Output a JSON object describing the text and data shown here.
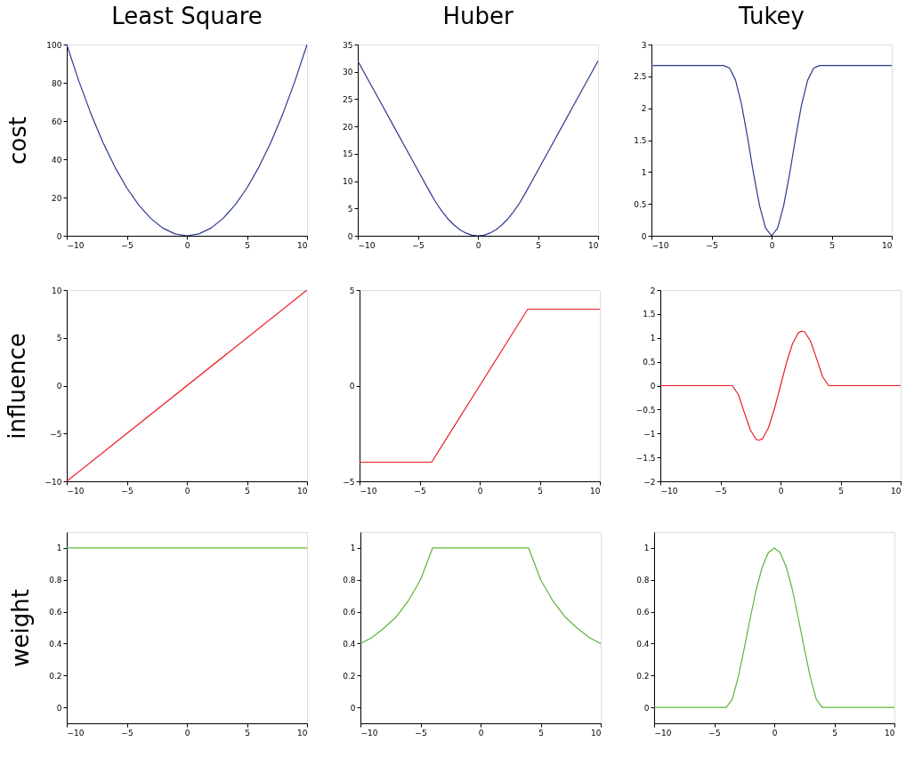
{
  "chart_data": [
    {
      "type": "line",
      "title": "Least Square",
      "ylabel": "cost",
      "x": [
        -10,
        -9,
        -8,
        -7,
        -6,
        -5,
        -4,
        -3,
        -2,
        -1,
        0,
        1,
        2,
        3,
        4,
        5,
        6,
        7,
        8,
        9,
        10
      ],
      "series": [
        {
          "color": "#2b3990",
          "values": [
            100,
            81,
            64,
            49,
            36,
            25,
            16,
            9,
            4,
            1,
            0,
            1,
            4,
            9,
            16,
            25,
            36,
            49,
            64,
            81,
            100
          ]
        }
      ],
      "xlim": [
        -10,
        10
      ],
      "xticks": [
        -10,
        -5,
        0,
        5,
        10
      ],
      "ylim": [
        0,
        100
      ],
      "yticks": [
        0,
        20,
        40,
        60,
        80,
        100
      ],
      "grid": false
    },
    {
      "type": "line",
      "title": "Huber",
      "x": [
        -10,
        -9,
        -8,
        -7,
        -6,
        -5,
        -4,
        -3.5,
        -3,
        -2.5,
        -2,
        -1.5,
        -1,
        -0.5,
        0,
        0.5,
        1,
        1.5,
        2,
        2.5,
        3,
        3.5,
        4,
        5,
        6,
        7,
        8,
        9,
        10
      ],
      "series": [
        {
          "color": "#2b3990",
          "values": [
            32,
            28,
            24,
            20,
            16,
            12,
            8,
            6.1,
            4.5,
            3.1,
            2,
            1.1,
            0.5,
            0.1,
            0,
            0.1,
            0.5,
            1.1,
            2,
            3.1,
            4.5,
            6.1,
            8,
            12,
            16,
            20,
            24,
            28,
            32
          ]
        }
      ],
      "xlim": [
        -10,
        10
      ],
      "xticks": [
        -10,
        -5,
        0,
        5,
        10
      ],
      "ylim": [
        0,
        35
      ],
      "yticks": [
        0,
        5,
        10,
        15,
        20,
        25,
        30,
        35
      ],
      "grid": false
    },
    {
      "type": "line",
      "title": "Tukey",
      "x": [
        -10,
        -4,
        -3.5,
        -3,
        -2.5,
        -2,
        -1.5,
        -1,
        -0.5,
        0,
        0.5,
        1,
        1.5,
        2,
        2.5,
        3,
        3.5,
        4,
        10
      ],
      "series": [
        {
          "color": "#2b3990",
          "values": [
            2.67,
            2.67,
            2.63,
            2.44,
            2.06,
            1.54,
            0.97,
            0.47,
            0.12,
            0,
            0.12,
            0.47,
            0.97,
            1.54,
            2.06,
            2.44,
            2.63,
            2.67,
            2.67
          ]
        }
      ],
      "xlim": [
        -10,
        10
      ],
      "xticks": [
        -10,
        -5,
        0,
        5,
        10
      ],
      "ylim": [
        0,
        3
      ],
      "yticks": [
        0,
        0.5,
        1,
        1.5,
        2,
        2.5,
        3
      ],
      "grid": false
    },
    {
      "type": "line",
      "ylabel": "influence",
      "x": [
        -10,
        10
      ],
      "series": [
        {
          "color": "#ed1c24",
          "values": [
            -10,
            10
          ]
        }
      ],
      "xlim": [
        -10,
        10
      ],
      "xticks": [
        -10,
        -5,
        0,
        5,
        10
      ],
      "ylim": [
        -10,
        10
      ],
      "yticks": [
        -10,
        -5,
        0,
        5,
        10
      ],
      "grid": false
    },
    {
      "type": "line",
      "x": [
        -10,
        -4,
        4,
        10
      ],
      "series": [
        {
          "color": "#ed1c24",
          "values": [
            -4,
            -4,
            4,
            4
          ]
        }
      ],
      "xlim": [
        -10,
        10
      ],
      "xticks": [
        -10,
        -5,
        0,
        5,
        10
      ],
      "ylim": [
        -5,
        5
      ],
      "yticks": [
        -5,
        0,
        5
      ],
      "grid": false
    },
    {
      "type": "line",
      "x": [
        -10,
        -4,
        -3.5,
        -3,
        -2.5,
        -2,
        -1.75,
        -1.5,
        -1,
        -0.5,
        0,
        0.5,
        1,
        1.5,
        1.75,
        2,
        2.5,
        3,
        3.5,
        4,
        10
      ],
      "series": [
        {
          "color": "#ed1c24",
          "values": [
            0,
            0,
            -0.19,
            -0.57,
            -0.93,
            -1.13,
            -1.14,
            -1.11,
            -0.88,
            -0.48,
            0,
            0.48,
            0.88,
            1.11,
            1.14,
            1.13,
            0.93,
            0.57,
            0.19,
            0,
            0
          ]
        }
      ],
      "xlim": [
        -10,
        10
      ],
      "xticks": [
        -10,
        -5,
        0,
        5,
        10
      ],
      "ylim": [
        -2,
        2
      ],
      "yticks": [
        -2,
        -1.5,
        -1,
        -0.5,
        0,
        0.5,
        1,
        1.5,
        2
      ],
      "grid": false
    },
    {
      "type": "line",
      "ylabel": "weight",
      "x": [
        -10,
        10
      ],
      "series": [
        {
          "color": "#5db535",
          "values": [
            1,
            1
          ]
        }
      ],
      "xlim": [
        -10,
        10
      ],
      "xticks": [
        -10,
        -5,
        0,
        5,
        10
      ],
      "ylim": [
        -0.1,
        1.1
      ],
      "yticks": [
        0,
        0.2,
        0.4,
        0.6,
        0.8,
        1
      ],
      "grid": false
    },
    {
      "type": "line",
      "x": [
        -10,
        -9,
        -8,
        -7,
        -6,
        -5,
        -4,
        4,
        5,
        6,
        7,
        8,
        9,
        10
      ],
      "series": [
        {
          "color": "#5db535",
          "values": [
            0.4,
            0.44,
            0.5,
            0.57,
            0.67,
            0.8,
            1,
            1,
            0.8,
            0.67,
            0.57,
            0.5,
            0.44,
            0.4
          ]
        }
      ],
      "xlim": [
        -10,
        10
      ],
      "xticks": [
        -10,
        -5,
        0,
        5,
        10
      ],
      "ylim": [
        -0.1,
        1.1
      ],
      "yticks": [
        0,
        0.2,
        0.4,
        0.6,
        0.8,
        1
      ],
      "grid": false
    },
    {
      "type": "line",
      "x": [
        -10,
        -4,
        -3.5,
        -3,
        -2.5,
        -2,
        -1.5,
        -1,
        -0.5,
        0,
        0.5,
        1,
        1.5,
        2,
        2.5,
        3,
        3.5,
        4,
        10
      ],
      "series": [
        {
          "color": "#5db535",
          "values": [
            0,
            0,
            0.05,
            0.19,
            0.37,
            0.56,
            0.74,
            0.88,
            0.97,
            1,
            0.97,
            0.88,
            0.74,
            0.56,
            0.37,
            0.19,
            0.05,
            0,
            0
          ]
        }
      ],
      "xlim": [
        -10,
        10
      ],
      "xticks": [
        -10,
        -5,
        0,
        5,
        10
      ],
      "ylim": [
        -0.1,
        1.1
      ],
      "yticks": [
        0,
        0.2,
        0.4,
        0.6,
        0.8,
        1
      ],
      "grid": false
    }
  ]
}
